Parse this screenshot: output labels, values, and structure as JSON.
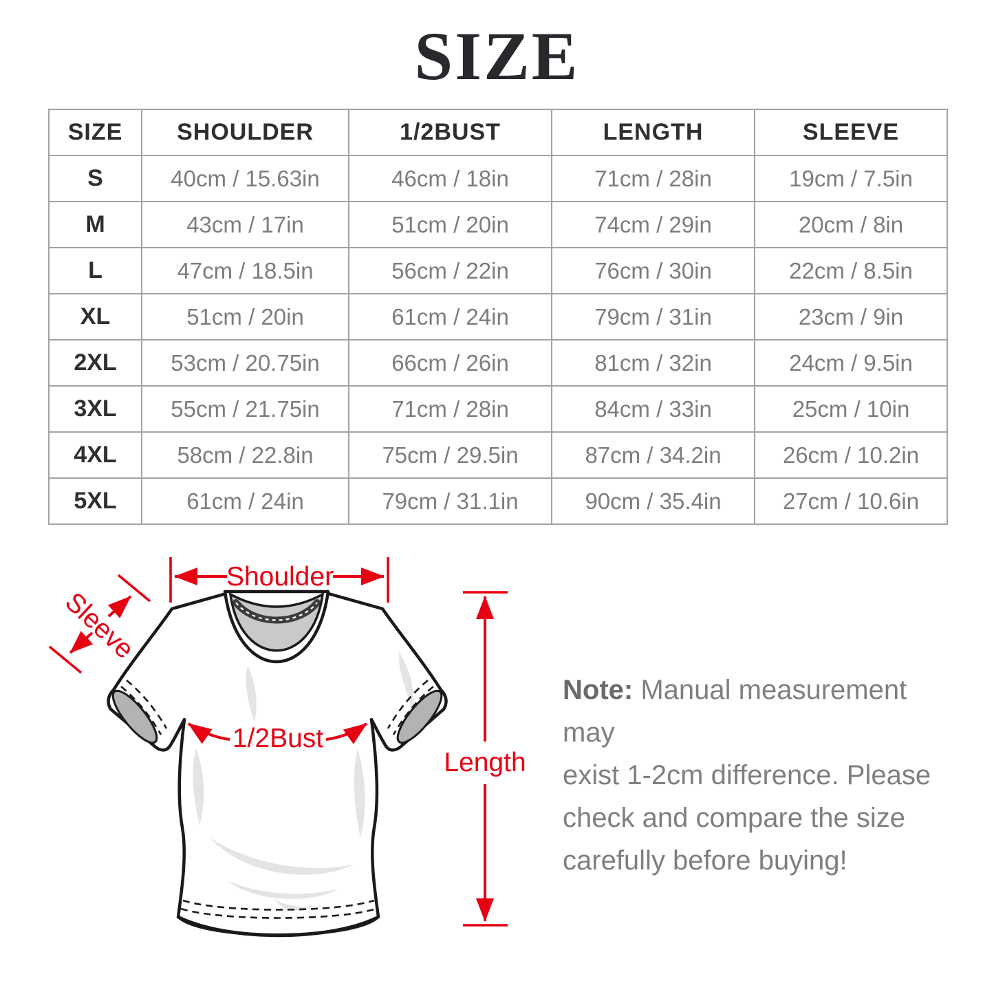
{
  "title": "SIZE",
  "table": {
    "columns": [
      "SIZE",
      "SHOULDER",
      "1/2BUST",
      "LENGTH",
      "SLEEVE"
    ],
    "rows": [
      [
        "S",
        "40cm / 15.63in",
        "46cm / 18in",
        "71cm / 28in",
        "19cm / 7.5in"
      ],
      [
        "M",
        "43cm / 17in",
        "51cm / 20in",
        "74cm / 29in",
        "20cm / 8in"
      ],
      [
        "L",
        "47cm / 18.5in",
        "56cm / 22in",
        "76cm / 30in",
        "22cm / 8.5in"
      ],
      [
        "XL",
        "51cm / 20in",
        "61cm / 24in",
        "79cm / 31in",
        "23cm / 9in"
      ],
      [
        "2XL",
        "53cm / 20.75in",
        "66cm / 26in",
        "81cm / 32in",
        "24cm / 9.5in"
      ],
      [
        "3XL",
        "55cm / 21.75in",
        "71cm / 28in",
        "84cm / 33in",
        "25cm / 10in"
      ],
      [
        "4XL",
        "58cm / 22.8in",
        "75cm / 29.5in",
        "87cm / 34.2in",
        "26cm / 10.2in"
      ],
      [
        "5XL",
        "61cm / 24in",
        "79cm / 31.1in",
        "90cm / 35.4in",
        "27cm / 10.6in"
      ]
    ]
  },
  "diagram": {
    "labels": {
      "shoulder": "Shoulder",
      "sleeve": "Sleeve",
      "bust": "1/2Bust",
      "length": "Length"
    },
    "annotation_color": "#e60012"
  },
  "note": {
    "label": "Note:",
    "lines": [
      "Manual measurement may",
      "exist 1-2cm difference. Please",
      "check and compare the size",
      "carefully before buying!"
    ]
  }
}
